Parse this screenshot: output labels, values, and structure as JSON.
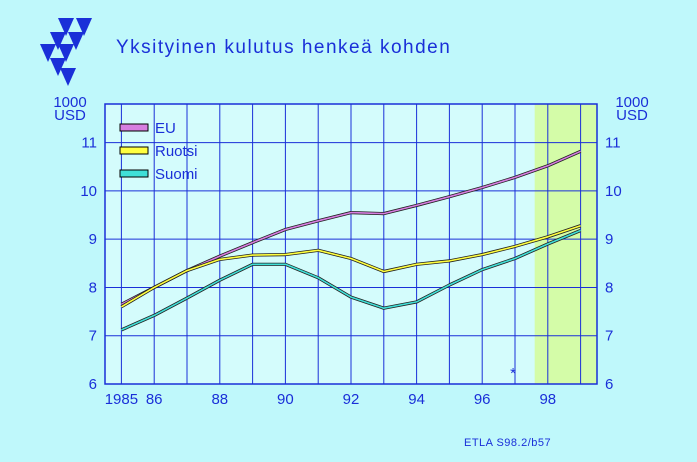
{
  "title": "Yksityinen  kulutus  henkeä  kohden",
  "footer": "ETLA S98.2/b57",
  "colors": {
    "background": "#bff8fb",
    "plot_area": "#d4fcfc",
    "forecast_area": "#d4fca8",
    "grid": "#1a2fd8",
    "text": "#1a2fd8",
    "logo": "#1a2fd8"
  },
  "chart_data": {
    "type": "line",
    "title": "Yksityinen  kulutus  henkeä  kohden",
    "ylabel_left": [
      "1000",
      "USD"
    ],
    "ylabel_right": [
      "1000",
      "USD"
    ],
    "ylim": [
      6,
      11.8
    ],
    "xlim": [
      1984.5,
      1999.5
    ],
    "x_ticks": [
      1985,
      1986,
      1988,
      1990,
      1992,
      1994,
      1996,
      1998
    ],
    "x_tick_labels": [
      "1985",
      "86",
      "88",
      "90",
      "92",
      "94",
      "96",
      "98"
    ],
    "y_ticks": [
      6,
      7,
      8,
      9,
      10,
      11
    ],
    "y_tick_labels": [
      "6",
      "7",
      "8",
      "9",
      "10",
      "11"
    ],
    "grid": true,
    "forecast_marker": "*",
    "forecast_from": 1997.6,
    "legend_position": "top-left",
    "x": [
      1985,
      1986,
      1987,
      1988,
      1989,
      1990,
      1991,
      1992,
      1993,
      1994,
      1995,
      1996,
      1997,
      1998,
      1999
    ],
    "series": [
      {
        "name": "EU",
        "color": "#d77ee0",
        "values": [
          7.65,
          8.0,
          8.35,
          8.65,
          8.93,
          9.2,
          9.38,
          9.55,
          9.53,
          9.7,
          9.88,
          10.07,
          10.28,
          10.52,
          10.82
        ]
      },
      {
        "name": "Ruotsi",
        "color": "#ffff40",
        "values": [
          7.6,
          8.0,
          8.35,
          8.58,
          8.67,
          8.68,
          8.77,
          8.6,
          8.33,
          8.48,
          8.55,
          8.68,
          8.85,
          9.05,
          9.28
        ]
      },
      {
        "name": "Suomi",
        "color": "#40e0d8",
        "values": [
          7.12,
          7.42,
          7.78,
          8.15,
          8.48,
          8.48,
          8.2,
          7.8,
          7.57,
          7.7,
          8.05,
          8.37,
          8.6,
          8.9,
          9.18
        ]
      }
    ]
  }
}
